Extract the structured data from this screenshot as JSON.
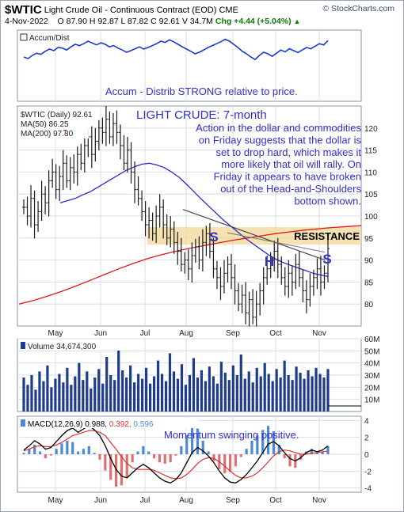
{
  "header": {
    "symbol": "$WTIC",
    "name": "Light Crude Oil - Continuous Contract (EOD)",
    "exchange": "CME",
    "source": "© StockCharts.com",
    "date": "4-Nov-2022",
    "open": "O 87.90",
    "high": "H 92.87",
    "low": "L 87.82",
    "close": "C 92.61",
    "volume": "V 34.7M",
    "change": "Chg +4.44 (+5.04%)",
    "change_icon": "up-triangle"
  },
  "colors": {
    "price_bar": "#1a1a1a",
    "ma50": "#2a2ad0",
    "ma200": "#e01818",
    "accum": "#1a3cc8",
    "annotation": "#3030c8",
    "volume": "#1f3c8c",
    "resistance_band": "#f3d79a",
    "histogram_pos": "#4a8ad6",
    "histogram_neg": "#e07070",
    "macd_signal": "#e03030"
  },
  "chart_data": [
    {
      "type": "line",
      "panel": "Accum/Dist",
      "title": "Accum/Dist",
      "annotation": "Accum - Distrib STRONG relative to price.",
      "note": "unitless indicator, values relative",
      "values": [
        0.3,
        0.25,
        0.35,
        0.42,
        0.38,
        0.48,
        0.55,
        0.5,
        0.6,
        0.58,
        0.52,
        0.62,
        0.7,
        0.66,
        0.72,
        0.8,
        0.74,
        0.68,
        0.75,
        0.7,
        0.62,
        0.66,
        0.58,
        0.52,
        0.45,
        0.5,
        0.56,
        0.62,
        0.55,
        0.6,
        0.66,
        0.72,
        0.8,
        0.76,
        0.84,
        0.78,
        0.7,
        0.62,
        0.55,
        0.48,
        0.4,
        0.45,
        0.52,
        0.6,
        0.66,
        0.72,
        0.78,
        0.86,
        0.8,
        0.7,
        0.6,
        0.48,
        0.4,
        0.3,
        0.22,
        0.35,
        0.45,
        0.4,
        0.32,
        0.42,
        0.52,
        0.46,
        0.56,
        0.5,
        0.44,
        0.52,
        0.6,
        0.56,
        0.64,
        0.72,
        0.68,
        0.82
      ]
    },
    {
      "type": "ohlc",
      "panel": "Price",
      "legend": "$WTIC (Daily) 92.61",
      "title": "LIGHT CRUDE: 7-month",
      "annotation_lines": [
        "Action in the dollar and commodities",
        "on Friday suggests that the dollar is",
        "set to drop hard, which makes it",
        "more likely that oil will rally. On",
        "Friday it appears to have broken",
        "out of the Head-and-Shoulders",
        "bottom shown."
      ],
      "resistance_label": "RESISTANCE",
      "pattern_labels": [
        "S",
        "H",
        "S"
      ],
      "ma50_label": "MA(50) 86.25",
      "ma200_label": "MA(200) 97.80",
      "x_labels": [
        "May",
        "Jun",
        "Jul",
        "Aug",
        "Sep",
        "Oct",
        "Nov"
      ],
      "ylim": [
        75,
        125
      ],
      "y_ticks": [
        80,
        85,
        90,
        95,
        100,
        105,
        110,
        115,
        120
      ],
      "resistance_band": [
        93.5,
        97.5
      ],
      "close": [
        102,
        100,
        104,
        98,
        101,
        105,
        103,
        108,
        110,
        106,
        109,
        112,
        108,
        111,
        110,
        114,
        112,
        116,
        118,
        114,
        117,
        120,
        119,
        122,
        118,
        121,
        119,
        116,
        112,
        115,
        110,
        106,
        104,
        101,
        98,
        99,
        96,
        100,
        102,
        98,
        95,
        97,
        94,
        92,
        89,
        90,
        88,
        91,
        93,
        90,
        94,
        96,
        92,
        88,
        86,
        84,
        87,
        89,
        86,
        83,
        80,
        82,
        78,
        81,
        77,
        80,
        83,
        86,
        88,
        90,
        92,
        89,
        86,
        84,
        87,
        85,
        89,
        86,
        83,
        81,
        84,
        86,
        88,
        85,
        87,
        92.61
      ],
      "ma50": [
        103,
        103.5,
        104,
        104.8,
        105.5,
        106.5,
        107.5,
        108.5,
        109.5,
        110.5,
        111.2,
        111.8,
        112.0,
        111.6,
        111.0,
        110.0,
        108.8,
        107.2,
        105.5,
        103.8,
        102.2,
        100.6,
        99.0,
        97.6,
        96.2,
        94.8,
        93.6,
        92.4,
        91.2,
        90.2,
        89.4,
        88.8,
        88.2,
        87.6,
        87.0,
        86.6,
        86.25
      ],
      "ma200": [
        80,
        80.8,
        81.8,
        82.9,
        84.1,
        85.4,
        86.7,
        88.0,
        89.2,
        90.3,
        91.2,
        92.0,
        92.7,
        93.3,
        93.9,
        94.5,
        95.0,
        95.5,
        96.0,
        96.4,
        96.8,
        97.1,
        97.4,
        97.6,
        97.8
      ]
    },
    {
      "type": "bar",
      "panel": "Volume",
      "legend": "Volume 34,674,300",
      "ylim": [
        0,
        60
      ],
      "unit": "M",
      "y_ticks": [
        "10M",
        "20M",
        "30M",
        "40M",
        "50M",
        "60M"
      ],
      "values": [
        28,
        22,
        30,
        18,
        33,
        25,
        38,
        20,
        27,
        31,
        24,
        36,
        22,
        29,
        40,
        26,
        33,
        19,
        28,
        35,
        23,
        45,
        30,
        26,
        52,
        34,
        28,
        38,
        24,
        31,
        27,
        36,
        23,
        29,
        42,
        31,
        25,
        48,
        33,
        27,
        39,
        22,
        30,
        44,
        28,
        34,
        25,
        37,
        29,
        23,
        41,
        32,
        26,
        38,
        30,
        47,
        27,
        33,
        24,
        36,
        29,
        40,
        31,
        25,
        35,
        28,
        42,
        30,
        26,
        37,
        32,
        27,
        34,
        29,
        36,
        31,
        28,
        35
      ]
    },
    {
      "type": "line",
      "panel": "MACD",
      "legend_name": "MACD(12,26,9)",
      "legend_values": [
        "0.988",
        "0.392",
        "0.596"
      ],
      "annotation": "Momentum swinging positive.",
      "ylim": [
        -4.5,
        4.5
      ],
      "y_ticks": [
        -4,
        -2,
        0,
        2,
        4
      ],
      "macd": [
        0.5,
        1.0,
        1.6,
        1.2,
        0.6,
        0.8,
        1.5,
        2.2,
        2.8,
        3.1,
        2.6,
        3.0,
        3.4,
        2.9,
        2.2,
        1.0,
        -0.5,
        -1.8,
        -2.6,
        -2.8,
        -2.2,
        -1.6,
        -1.2,
        -1.6,
        -2.2,
        -2.8,
        -3.2,
        -3.4,
        -3.0,
        -2.2,
        -1.0,
        0.2,
        0.8,
        0.4,
        -0.2,
        -1.0,
        -2.0,
        -2.8,
        -3.3,
        -3.4,
        -3.0,
        -2.4,
        -1.6,
        -0.8,
        0.2,
        1.2,
        1.5,
        1.0,
        0.2,
        -0.5,
        -0.8,
        -0.4,
        0.2,
        0.5,
        0.3,
        0.5,
        0.988
      ],
      "signal": [
        0.4,
        0.6,
        0.9,
        1.0,
        0.9,
        0.9,
        1.1,
        1.4,
        1.8,
        2.2,
        2.4,
        2.6,
        2.8,
        2.8,
        2.6,
        2.2,
        1.4,
        0.6,
        -0.3,
        -1.1,
        -1.6,
        -1.8,
        -1.8,
        -1.8,
        -1.9,
        -2.2,
        -2.5,
        -2.8,
        -2.9,
        -2.8,
        -2.4,
        -1.8,
        -1.1,
        -0.6,
        -0.4,
        -0.5,
        -0.9,
        -1.4,
        -2.0,
        -2.5,
        -2.8,
        -2.8,
        -2.6,
        -2.2,
        -1.6,
        -0.9,
        -0.2,
        0.3,
        0.5,
        0.4,
        0.2,
        0.0,
        0.0,
        0.1,
        0.2,
        0.3,
        0.392
      ]
    }
  ]
}
